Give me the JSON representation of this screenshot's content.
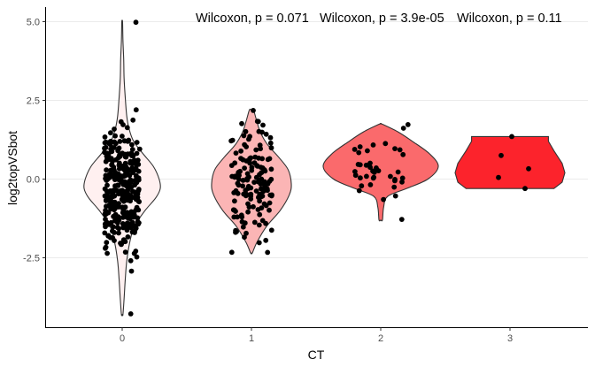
{
  "chart_data": {
    "type": "violin",
    "xlabel": "CT",
    "ylabel": "log2topVSbot",
    "categories": [
      "0",
      "1",
      "2",
      "3"
    ],
    "ylim": [
      -4.6,
      5.3
    ],
    "yticks": [
      -2.5,
      0.0,
      2.5,
      5.0
    ],
    "ytick_labels": [
      "-2.5",
      "0.0",
      "2.5",
      "5.0"
    ],
    "grid": "horizontal major",
    "legend": "none",
    "annotations": [
      "Wilcoxon, p = 0.071",
      "Wilcoxon, p = 3.9e-05",
      "Wilcoxon, p = 0.11"
    ],
    "series": [
      {
        "category": "0",
        "fill": "#fff0f0",
        "n_points_approx": 330,
        "range": [
          -4.3,
          5.0
        ],
        "violin_profile": [
          [
            -4.3,
            0.02
          ],
          [
            -3.8,
            0.05
          ],
          [
            -3.2,
            0.08
          ],
          [
            -2.6,
            0.12
          ],
          [
            -2.0,
            0.2
          ],
          [
            -1.5,
            0.32
          ],
          [
            -1.0,
            0.6
          ],
          [
            -0.6,
            0.88
          ],
          [
            -0.3,
            1.0
          ],
          [
            0.0,
            0.97
          ],
          [
            0.4,
            0.82
          ],
          [
            0.8,
            0.55
          ],
          [
            1.2,
            0.3
          ],
          [
            1.6,
            0.18
          ],
          [
            2.0,
            0.12
          ],
          [
            2.6,
            0.08
          ],
          [
            3.2,
            0.05
          ],
          [
            3.8,
            0.04
          ],
          [
            4.4,
            0.02
          ],
          [
            5.0,
            0.01
          ]
        ]
      },
      {
        "category": "1",
        "fill": "#fbb5b5",
        "n_points_approx": 150,
        "range": [
          -2.35,
          2.2
        ],
        "violin_profile": [
          [
            -2.35,
            0.02
          ],
          [
            -2.0,
            0.14
          ],
          [
            -1.5,
            0.38
          ],
          [
            -1.0,
            0.72
          ],
          [
            -0.5,
            0.95
          ],
          [
            -0.15,
            1.0
          ],
          [
            0.3,
            0.92
          ],
          [
            0.7,
            0.68
          ],
          [
            1.1,
            0.4
          ],
          [
            1.5,
            0.22
          ],
          [
            1.9,
            0.12
          ],
          [
            2.2,
            0.05
          ]
        ]
      },
      {
        "category": "2",
        "fill": "#fa6a6c",
        "n_points_approx": 40,
        "range": [
          -1.3,
          1.75
        ],
        "violin_profile": [
          [
            -1.3,
            0.03
          ],
          [
            -0.9,
            0.05
          ],
          [
            -0.55,
            0.12
          ],
          [
            -0.3,
            0.45
          ],
          [
            0.0,
            0.82
          ],
          [
            0.4,
            1.0
          ],
          [
            0.8,
            0.85
          ],
          [
            1.2,
            0.55
          ],
          [
            1.5,
            0.3
          ],
          [
            1.75,
            0.02
          ]
        ]
      },
      {
        "category": "3",
        "fill": "#fc232c",
        "n_points_approx": 5,
        "values_approx": [
          1.35,
          0.75,
          0.33,
          0.05,
          -0.3
        ],
        "range": [
          -0.3,
          1.35
        ],
        "violin_profile": [
          [
            -0.3,
            0.8
          ],
          [
            -0.1,
            0.95
          ],
          [
            0.2,
            1.0
          ],
          [
            0.5,
            0.95
          ],
          [
            0.9,
            0.8
          ],
          [
            1.2,
            0.7
          ],
          [
            1.35,
            0.7
          ]
        ]
      }
    ]
  }
}
